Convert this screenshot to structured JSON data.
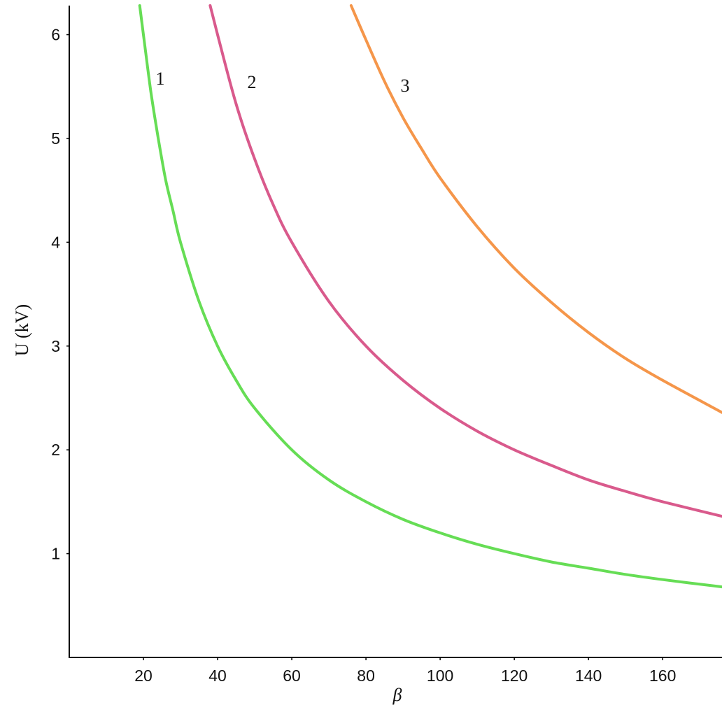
{
  "chart_data": {
    "type": "line",
    "xlabel": "β",
    "ylabel": "U (kV)",
    "xlim": [
      0,
      176
    ],
    "ylim": [
      0,
      6.28
    ],
    "x_ticks": [
      20,
      40,
      60,
      80,
      100,
      120,
      140,
      160
    ],
    "y_ticks": [
      1,
      2,
      3,
      4,
      5,
      6
    ],
    "grid": false,
    "series": [
      {
        "name": "1",
        "color": "#66dd55",
        "x": [
          19,
          20,
          22,
          24,
          26,
          28,
          30,
          35,
          40,
          45,
          50,
          60,
          70,
          80,
          90,
          100,
          110,
          120,
          130,
          140,
          150,
          160,
          176
        ],
        "y": [
          6.3,
          6.0,
          5.45,
          5.0,
          4.6,
          4.3,
          4.0,
          3.43,
          3.0,
          2.67,
          2.4,
          2.0,
          1.71,
          1.5,
          1.33,
          1.2,
          1.09,
          1.0,
          0.92,
          0.86,
          0.8,
          0.75,
          0.68
        ]
      },
      {
        "name": "2",
        "color": "#d95a8c",
        "x": [
          38,
          40,
          45,
          50,
          55,
          60,
          70,
          80,
          90,
          100,
          110,
          120,
          130,
          140,
          150,
          160,
          176
        ],
        "y": [
          6.3,
          6.0,
          5.33,
          4.8,
          4.36,
          4.0,
          3.43,
          3.0,
          2.67,
          2.4,
          2.18,
          2.0,
          1.85,
          1.71,
          1.6,
          1.5,
          1.36
        ]
      },
      {
        "name": "3",
        "color": "#f5964a",
        "x": [
          76,
          80,
          85,
          90,
          95,
          100,
          110,
          120,
          130,
          140,
          150,
          160,
          176
        ],
        "y": [
          6.3,
          5.95,
          5.55,
          5.2,
          4.9,
          4.62,
          4.15,
          3.75,
          3.42,
          3.13,
          2.88,
          2.67,
          2.36
        ]
      }
    ]
  }
}
